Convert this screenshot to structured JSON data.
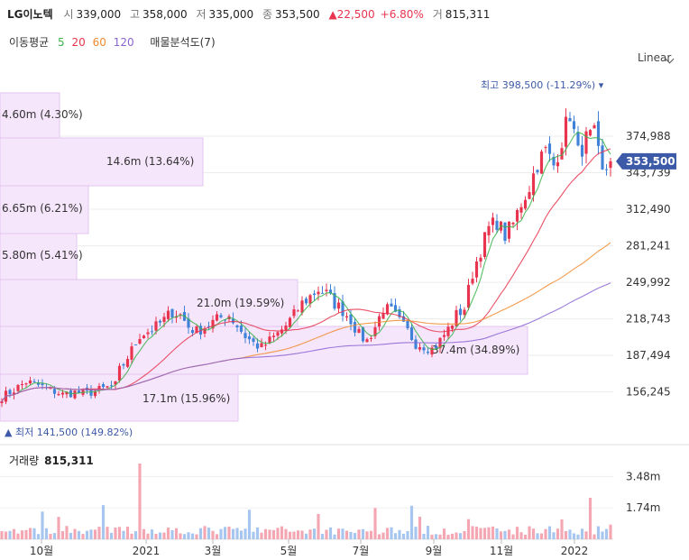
{
  "header": {
    "stock_name": "LG이노텍",
    "open_label": "시",
    "open": "339,000",
    "high_label": "고",
    "high": "358,000",
    "low_label": "저",
    "low": "335,000",
    "close_label": "종",
    "close": "353,500",
    "change": "▲22,500",
    "change_pct": "+6.80%",
    "volume_label": "거",
    "volume": "815,311"
  },
  "ma_legend": {
    "label": "이동평균",
    "periods": [
      {
        "text": "5",
        "color": "#3bb34a"
      },
      {
        "text": "20",
        "color": "#e8344e"
      },
      {
        "text": "60",
        "color": "#f08a2e"
      },
      {
        "text": "120",
        "color": "#8a63d2"
      }
    ],
    "volume_profile": "매물분석도(7)"
  },
  "scale_toggle": "Linear",
  "colors": {
    "up": "#e8344e",
    "down": "#3f82d8",
    "ma5": "#3bb34a",
    "ma20": "#e8344e",
    "ma60": "#f08a2e",
    "ma120": "#8a63d2",
    "profile": "#f6e6fb"
  },
  "chart_data": {
    "type": "candlestick",
    "y_axis": {
      "ticks": [
        "374,988",
        "343,739",
        "312,490",
        "281,241",
        "249,992",
        "218,743",
        "187,494",
        "156,245"
      ],
      "tick_values": [
        374988,
        343739,
        312490,
        281241,
        249992,
        218743,
        187494,
        156245
      ],
      "range": [
        129000,
        412000
      ]
    },
    "current_price_label": "353,500",
    "x_axis_labels": [
      "10월",
      "2021",
      "3월",
      "5월",
      "7월",
      "9월",
      "11월",
      "2022"
    ],
    "price_path": [
      [
        0,
        152000
      ],
      [
        3,
        158000
      ],
      [
        6,
        165000
      ],
      [
        9,
        162000
      ],
      [
        12,
        158000
      ],
      [
        15,
        154000
      ],
      [
        18,
        156000
      ],
      [
        21,
        155000
      ],
      [
        24,
        158000
      ],
      [
        26,
        160000
      ],
      [
        28,
        162000
      ],
      [
        29,
        175000
      ],
      [
        30,
        180000
      ],
      [
        32,
        192000
      ],
      [
        34,
        205000
      ],
      [
        36,
        208000
      ],
      [
        38,
        212000
      ],
      [
        40,
        218000
      ],
      [
        42,
        225000
      ],
      [
        44,
        222000
      ],
      [
        46,
        212000
      ],
      [
        48,
        208000
      ],
      [
        50,
        212000
      ],
      [
        52,
        216000
      ],
      [
        54,
        220000
      ],
      [
        56,
        222000
      ],
      [
        58,
        213000
      ],
      [
        60,
        204000
      ],
      [
        62,
        198000
      ],
      [
        64,
        194000
      ],
      [
        66,
        200000
      ],
      [
        68,
        206000
      ],
      [
        70,
        213000
      ],
      [
        72,
        222000
      ],
      [
        74,
        232000
      ],
      [
        76,
        238000
      ],
      [
        78,
        244000
      ],
      [
        80,
        240000
      ],
      [
        82,
        232000
      ],
      [
        84,
        226000
      ],
      [
        86,
        218000
      ],
      [
        88,
        205000
      ],
      [
        90,
        200000
      ],
      [
        92,
        212000
      ],
      [
        94,
        228000
      ],
      [
        96,
        225000
      ],
      [
        98,
        216000
      ],
      [
        100,
        208000
      ],
      [
        102,
        198000
      ],
      [
        104,
        196000
      ],
      [
        106,
        193000
      ],
      [
        108,
        200000
      ],
      [
        110,
        210000
      ],
      [
        112,
        222000
      ],
      [
        114,
        228000
      ],
      [
        116,
        258000
      ],
      [
        118,
        278000
      ],
      [
        120,
        296000
      ],
      [
        122,
        302000
      ],
      [
        124,
        290000
      ],
      [
        126,
        300000
      ],
      [
        128,
        318000
      ],
      [
        130,
        332000
      ],
      [
        132,
        352000
      ],
      [
        134,
        362000
      ],
      [
        136,
        350000
      ],
      [
        138,
        372000
      ],
      [
        140,
        395000
      ],
      [
        142,
        360000
      ],
      [
        144,
        372000
      ],
      [
        146,
        375000
      ],
      [
        148,
        342000
      ],
      [
        150,
        353500
      ]
    ],
    "min_marker": {
      "label": "최저",
      "value": "141,500 (149.82%)"
    },
    "max_marker": {
      "label": "최고",
      "value": "398,500 (-11.29%)"
    },
    "volume_profile": [
      {
        "label": "4.60m (4.30%)"
      },
      {
        "label": "14.6m (13.64%)"
      },
      {
        "label": "6.65m (6.21%)"
      },
      {
        "label": "5.80m (5.41%)"
      },
      {
        "label": "21.0m (19.59%)"
      },
      {
        "label": "37.4m (34.89%)"
      },
      {
        "label": "17.1m (15.96%)"
      }
    ],
    "volume": {
      "title": "거래량",
      "last": "815,311",
      "ticks": [
        "3.48m",
        "1.74m"
      ],
      "tick_values": [
        3480000,
        1740000
      ],
      "range": [
        0,
        4900000
      ]
    }
  }
}
